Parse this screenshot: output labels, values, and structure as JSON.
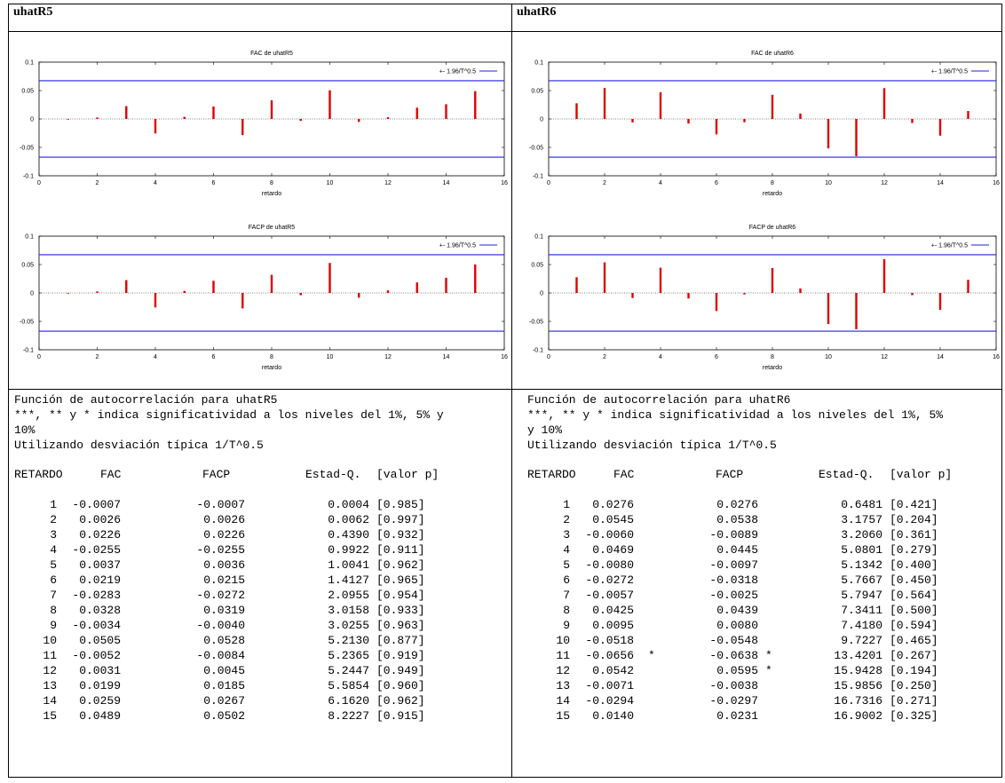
{
  "left": {
    "header": "uhatR5",
    "fac_title": "FAC de uhatR5",
    "facp_title": "FACP de uhatR5",
    "text_title": "Función de autocorrelación para uhatR5",
    "text_line2": "***, ** y * indica significatividad a los niveles del 1%, 5% y",
    "text_line3": "10%",
    "text_line4": "Utilizando desviación típica 1/T^0.5",
    "rows": [
      [
        "1",
        "-0.0007",
        "",
        "-0.0007",
        "",
        "0.0004",
        "[0.985]"
      ],
      [
        "2",
        "0.0026",
        "",
        "0.0026",
        "",
        "0.0062",
        "[0.997]"
      ],
      [
        "3",
        "0.0226",
        "",
        "0.0226",
        "",
        "0.4390",
        "[0.932]"
      ],
      [
        "4",
        "-0.0255",
        "",
        "-0.0255",
        "",
        "0.9922",
        "[0.911]"
      ],
      [
        "5",
        "0.0037",
        "",
        "0.0036",
        "",
        "1.0041",
        "[0.962]"
      ],
      [
        "6",
        "0.0219",
        "",
        "0.0215",
        "",
        "1.4127",
        "[0.965]"
      ],
      [
        "7",
        "-0.0283",
        "",
        "-0.0272",
        "",
        "2.0955",
        "[0.954]"
      ],
      [
        "8",
        "0.0328",
        "",
        "0.0319",
        "",
        "3.0158",
        "[0.933]"
      ],
      [
        "9",
        "-0.0034",
        "",
        "-0.0040",
        "",
        "3.0255",
        "[0.963]"
      ],
      [
        "10",
        "0.0505",
        "",
        "0.0528",
        "",
        "5.2130",
        "[0.877]"
      ],
      [
        "11",
        "-0.0052",
        "",
        "-0.0084",
        "",
        "5.2365",
        "[0.919]"
      ],
      [
        "12",
        "0.0031",
        "",
        "0.0045",
        "",
        "5.2447",
        "[0.949]"
      ],
      [
        "13",
        "0.0199",
        "",
        "0.0185",
        "",
        "5.5854",
        "[0.960]"
      ],
      [
        "14",
        "0.0259",
        "",
        "0.0267",
        "",
        "6.1620",
        "[0.962]"
      ],
      [
        "15",
        "0.0489",
        "",
        "0.0502",
        "",
        "8.2227",
        "[0.915]"
      ]
    ]
  },
  "right": {
    "header": "uhatR6",
    "fac_title": "FAC de uhatR6",
    "facp_title": "FACP de uhatR6",
    "text_title": "Función de autocorrelación para uhatR6",
    "text_line2": "***, ** y * indica significatividad a los niveles del 1%, 5%",
    "text_line3": "y 10%",
    "text_line4": "Utilizando desviación típica 1/T^0.5",
    "rows": [
      [
        "1",
        "0.0276",
        "",
        "0.0276",
        "",
        "0.6481",
        "[0.421]"
      ],
      [
        "2",
        "0.0545",
        "",
        "0.0538",
        "",
        "3.1757",
        "[0.204]"
      ],
      [
        "3",
        "-0.0060",
        "",
        "-0.0089",
        "",
        "3.2060",
        "[0.361]"
      ],
      [
        "4",
        "0.0469",
        "",
        "0.0445",
        "",
        "5.0801",
        "[0.279]"
      ],
      [
        "5",
        "-0.0080",
        "",
        "-0.0097",
        "",
        "5.1342",
        "[0.400]"
      ],
      [
        "6",
        "-0.0272",
        "",
        "-0.0318",
        "",
        "5.7667",
        "[0.450]"
      ],
      [
        "7",
        "-0.0057",
        "",
        "-0.0025",
        "",
        "5.7947",
        "[0.564]"
      ],
      [
        "8",
        "0.0425",
        "",
        "0.0439",
        "",
        "7.3411",
        "[0.500]"
      ],
      [
        "9",
        "0.0095",
        "",
        "0.0080",
        "",
        "7.4180",
        "[0.594]"
      ],
      [
        "10",
        "-0.0518",
        "",
        "-0.0548",
        "",
        "9.7227",
        "[0.465]"
      ],
      [
        "11",
        "-0.0656",
        "*",
        "-0.0638",
        "*",
        "13.4201",
        "[0.267]"
      ],
      [
        "12",
        "0.0542",
        "",
        "0.0595",
        "*",
        "15.9428",
        "[0.194]"
      ],
      [
        "13",
        "-0.0071",
        "",
        "-0.0038",
        "",
        "15.9856",
        "[0.250]"
      ],
      [
        "14",
        "-0.0294",
        "",
        "-0.0297",
        "",
        "16.7316",
        "[0.271]"
      ],
      [
        "15",
        "0.0140",
        "",
        "0.0231",
        "",
        "16.9002",
        "[0.325]"
      ]
    ]
  },
  "table_headers": {
    "retardo": "RETARDO",
    "fac": "FAC",
    "facp": "FACP",
    "estad": "Estad-Q.",
    "valorp": "[valor p]"
  },
  "chart_common": {
    "legend_label": "+- 1.96/T^0.5",
    "xlabel": "retardo",
    "bar_color": "#e00000",
    "band_color": "#2020e0",
    "band_value": 0.0673,
    "xlim": [
      0,
      16
    ],
    "ylim": [
      -0.1,
      0.1
    ],
    "x_ticks": [
      "0",
      "2",
      "4",
      "6",
      "8",
      "10",
      "12",
      "14",
      "16"
    ],
    "y_ticks": [
      "0.1",
      "0.05",
      "0",
      "-0.05",
      "-0.1"
    ]
  },
  "chart_data": [
    {
      "type": "bar",
      "title": "FAC de uhatR5",
      "xlabel": "retardo",
      "x": [
        1,
        2,
        3,
        4,
        5,
        6,
        7,
        8,
        9,
        10,
        11,
        12,
        13,
        14,
        15
      ],
      "values": [
        -0.0007,
        0.0026,
        0.0226,
        -0.0255,
        0.0037,
        0.0219,
        -0.0283,
        0.0328,
        -0.0034,
        0.0505,
        -0.0052,
        0.0031,
        0.0199,
        0.0259,
        0.0489
      ],
      "xlim": [
        0,
        16
      ],
      "ylim": [
        -0.1,
        0.1
      ],
      "legend": "+- 1.96/T^0.5"
    },
    {
      "type": "bar",
      "title": "FACP de uhatR5",
      "xlabel": "retardo",
      "x": [
        1,
        2,
        3,
        4,
        5,
        6,
        7,
        8,
        9,
        10,
        11,
        12,
        13,
        14,
        15
      ],
      "values": [
        -0.0007,
        0.0026,
        0.0226,
        -0.0255,
        0.0036,
        0.0215,
        -0.0272,
        0.0319,
        -0.004,
        0.0528,
        -0.0084,
        0.0045,
        0.0185,
        0.0267,
        0.0502
      ],
      "xlim": [
        0,
        16
      ],
      "ylim": [
        -0.1,
        0.1
      ],
      "legend": "+- 1.96/T^0.5"
    },
    {
      "type": "bar",
      "title": "FAC de uhatR6",
      "xlabel": "retardo",
      "x": [
        1,
        2,
        3,
        4,
        5,
        6,
        7,
        8,
        9,
        10,
        11,
        12,
        13,
        14,
        15
      ],
      "values": [
        0.0276,
        0.0545,
        -0.006,
        0.0469,
        -0.008,
        -0.0272,
        -0.0057,
        0.0425,
        0.0095,
        -0.0518,
        -0.0656,
        0.0542,
        -0.0071,
        -0.0294,
        0.014
      ],
      "xlim": [
        0,
        16
      ],
      "ylim": [
        -0.1,
        0.1
      ],
      "legend": "+- 1.96/T^0.5"
    },
    {
      "type": "bar",
      "title": "FACP de uhatR6",
      "xlabel": "retardo",
      "x": [
        1,
        2,
        3,
        4,
        5,
        6,
        7,
        8,
        9,
        10,
        11,
        12,
        13,
        14,
        15
      ],
      "values": [
        0.0276,
        0.0538,
        -0.0089,
        0.0445,
        -0.0097,
        -0.0318,
        -0.0025,
        0.0439,
        0.008,
        -0.0548,
        -0.0638,
        0.0595,
        -0.0038,
        -0.0297,
        0.0231
      ],
      "xlim": [
        0,
        16
      ],
      "ylim": [
        -0.1,
        0.1
      ],
      "legend": "+- 1.96/T^0.5"
    }
  ]
}
